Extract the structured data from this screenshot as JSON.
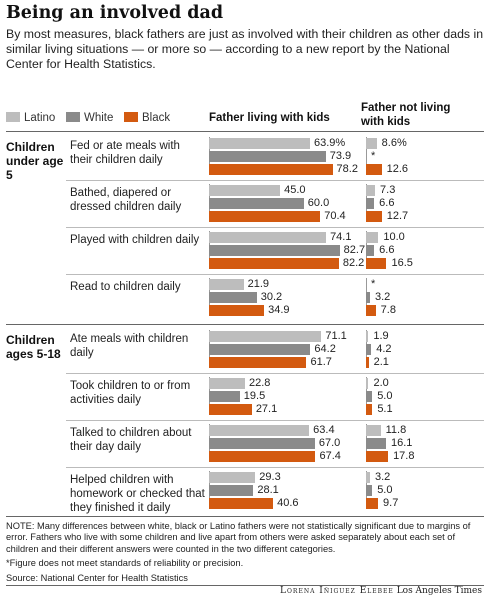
{
  "title": "Being an involved dad",
  "subtitle": "By most measures, black fathers are just as involved with their children as other dads in similar living situations — or more so — according to a new report by the National Center for Health Statistics.",
  "legend": {
    "latino": "Latino",
    "white": "White",
    "black": "Black"
  },
  "colors": {
    "latino": "#bdbdbd",
    "white": "#8a8a8a",
    "black": "#d35a10"
  },
  "columns": {
    "living_with": "Father living with kids",
    "not_living_with": "Father not living with kids"
  },
  "chart_data": {
    "type": "bar",
    "orientation": "horizontal",
    "title": "Being an involved dad",
    "series_names": [
      "Latino",
      "White",
      "Black"
    ],
    "groups": [
      {
        "label": "Children under age 5",
        "items": [
          {
            "label": "Fed or ate meals with their children daily",
            "living_with": [
              63.9,
              73.9,
              78.2
            ],
            "living_with_labels": [
              "63.9%",
              "73.9",
              "78.2"
            ],
            "not_living_with": [
              8.6,
              null,
              12.6
            ],
            "not_living_with_labels": [
              "8.6%",
              "*",
              "12.6"
            ]
          },
          {
            "label": "Bathed, diapered or dressed children daily",
            "living_with": [
              45.0,
              60.0,
              70.4
            ],
            "living_with_labels": [
              "45.0",
              "60.0",
              "70.4"
            ],
            "not_living_with": [
              7.3,
              6.6,
              12.7
            ],
            "not_living_with_labels": [
              "7.3",
              "6.6",
              "12.7"
            ]
          },
          {
            "label": "Played with children daily",
            "living_with": [
              74.1,
              82.7,
              82.2
            ],
            "living_with_labels": [
              "74.1",
              "82.7",
              "82.2"
            ],
            "not_living_with": [
              10.0,
              6.6,
              16.5
            ],
            "not_living_with_labels": [
              "10.0",
              "6.6",
              "16.5"
            ]
          },
          {
            "label": "Read to children daily",
            "living_with": [
              21.9,
              30.2,
              34.9
            ],
            "living_with_labels": [
              "21.9",
              "30.2",
              "34.9"
            ],
            "not_living_with": [
              null,
              3.2,
              7.8
            ],
            "not_living_with_labels": [
              "*",
              "3.2",
              "7.8"
            ]
          }
        ]
      },
      {
        "label": "Children ages 5-18",
        "items": [
          {
            "label": "Ate meals with children daily",
            "living_with": [
              71.1,
              64.2,
              61.7
            ],
            "living_with_labels": [
              "71.1",
              "64.2",
              "61.7"
            ],
            "not_living_with": [
              1.9,
              4.2,
              2.1
            ],
            "not_living_with_labels": [
              "1.9",
              "4.2",
              "2.1"
            ]
          },
          {
            "label": "Took children to or from activities daily",
            "living_with": [
              22.8,
              19.5,
              27.1
            ],
            "living_with_labels": [
              "22.8",
              "19.5",
              "27.1"
            ],
            "not_living_with": [
              2.0,
              5.0,
              5.1
            ],
            "not_living_with_labels": [
              "2.0",
              "5.0",
              "5.1"
            ]
          },
          {
            "label": "Talked to children about their day daily",
            "living_with": [
              63.4,
              67.0,
              67.4
            ],
            "living_with_labels": [
              "63.4",
              "67.0",
              "67.4"
            ],
            "not_living_with": [
              11.8,
              16.1,
              17.8
            ],
            "not_living_with_labels": [
              "11.8",
              "16.1",
              "17.8"
            ]
          },
          {
            "label": "Helped children with homework or checked that they finished it daily",
            "living_with": [
              29.3,
              28.1,
              40.6
            ],
            "living_with_labels": [
              "29.3",
              "28.1",
              "40.6"
            ],
            "not_living_with": [
              3.2,
              5.0,
              9.7
            ],
            "not_living_with_labels": [
              "3.2",
              "5.0",
              "9.7"
            ]
          }
        ]
      }
    ]
  },
  "notes": {
    "note": "NOTE: Many differences between white, black or Latino fathers were not statistically significant due to margins of error. Fathers who live with some children and live apart from others were asked separately about each set of children and their different answers were counted in the two different categories.",
    "footnote": "*Figure does not meet standards of reliability or precision.",
    "source": "Source: National Center for Health Statistics"
  },
  "credit": {
    "name": "Lorena Iñiguez Elebee",
    "outlet": "Los Angeles Times"
  }
}
